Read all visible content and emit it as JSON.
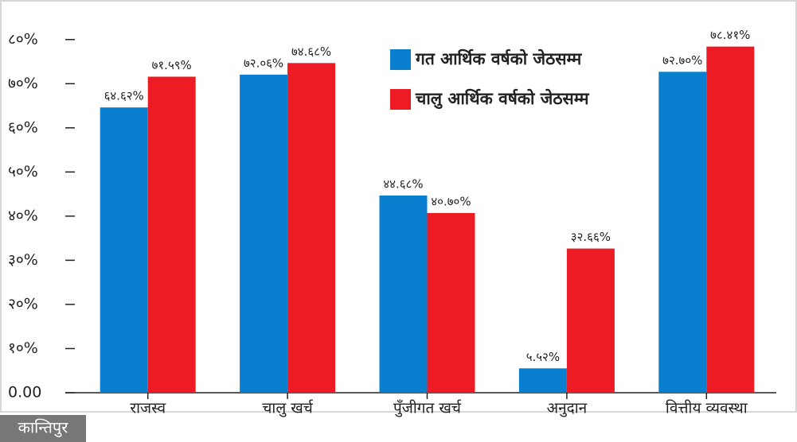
{
  "chart_data": {
    "type": "bar",
    "categories": [
      "राजस्व",
      "चालु खर्च",
      "पुँजीगत खर्च",
      "अनुदान",
      "वित्तीय व्यवस्था"
    ],
    "series": [
      {
        "name": "गत आर्थिक वर्षको जेठसम्म",
        "color": "#0a7fd0",
        "values": [
          64.62,
          72.06,
          44.68,
          5.52,
          72.7
        ],
        "value_labels": [
          "६४.६२%",
          "७२.०६%",
          "४४.६८%",
          "५.५२%",
          "७२.७०%"
        ]
      },
      {
        "name": "चालु आर्थिक वर्षको जेठसम्म",
        "color": "#ed1c24",
        "values": [
          71.59,
          74.68,
          40.7,
          32.66,
          78.41
        ],
        "value_labels": [
          "७१.५९%",
          "७४.६८%",
          "४०.७०%",
          "३२.६६%",
          "७८.४१%"
        ]
      }
    ],
    "ylim": [
      0,
      85
    ],
    "yticks": [
      {
        "value": 0,
        "label": "0.00"
      },
      {
        "value": 10,
        "label": "१०%"
      },
      {
        "value": 20,
        "label": "२०%"
      },
      {
        "value": 30,
        "label": "३०%"
      },
      {
        "value": 40,
        "label": "४०%"
      },
      {
        "value": 50,
        "label": "५०%"
      },
      {
        "value": 60,
        "label": "६०%"
      },
      {
        "value": 70,
        "label": "७०%"
      },
      {
        "value": 80,
        "label": "८०%"
      }
    ],
    "legend": "top-right",
    "watermark": "कान्तिपुर"
  }
}
